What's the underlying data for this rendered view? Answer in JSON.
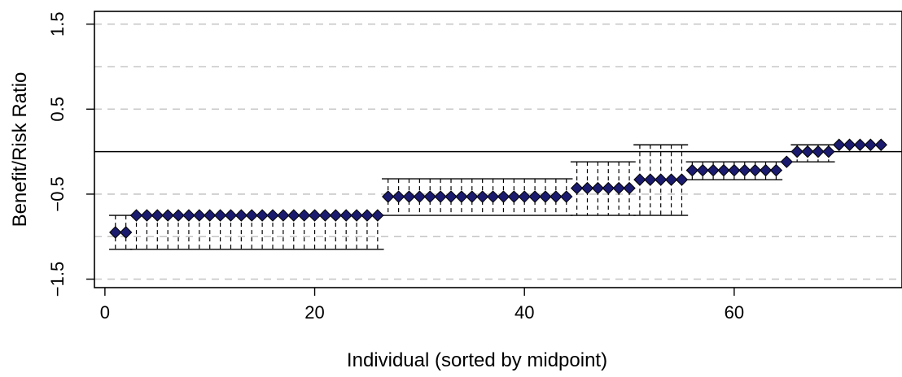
{
  "chart_data": {
    "type": "scatter",
    "xlabel": "Individual (sorted by midpoint)",
    "ylabel": "Benefit/Risk Ratio",
    "xlim": [
      -1,
      76
    ],
    "ylim": [
      -1.6,
      1.65
    ],
    "x_ticks": [
      0,
      20,
      40,
      60
    ],
    "x_tick_labels": [
      "0",
      "20",
      "40",
      "60"
    ],
    "y_ticks": [
      -1.5,
      -0.5,
      0.5,
      1.5
    ],
    "y_tick_labels": [
      "−1.5",
      "−0.5",
      "0.5",
      "1.5"
    ],
    "grid_lines": [
      -1.5,
      -1.0,
      -0.5,
      0.5,
      1.0,
      1.5
    ],
    "reference_line": 0,
    "marker_color": "#1a1a6e",
    "intervals": [
      {
        "from": 1,
        "to": 2,
        "mid": -0.95,
        "low": -1.15,
        "high": -0.75
      },
      {
        "from": 3,
        "to": 26,
        "mid": -0.75,
        "low": -1.15,
        "high": -0.75
      },
      {
        "from": 27,
        "to": 44,
        "mid": -0.53,
        "low": -0.75,
        "high": -0.32
      },
      {
        "from": 45,
        "to": 50,
        "mid": -0.43,
        "low": -0.75,
        "high": -0.12
      },
      {
        "from": 51,
        "to": 55,
        "mid": -0.33,
        "low": -0.75,
        "high": 0.08
      },
      {
        "from": 56,
        "to": 64,
        "mid": -0.22,
        "low": -0.33,
        "high": -0.12
      },
      {
        "from": 65,
        "to": 65,
        "mid": -0.12,
        "low": null,
        "high": null
      },
      {
        "from": 66,
        "to": 69,
        "mid": 0.0,
        "low": -0.12,
        "high": 0.08
      },
      {
        "from": 70,
        "to": 74,
        "mid": 0.08,
        "low": null,
        "high": null
      }
    ]
  }
}
